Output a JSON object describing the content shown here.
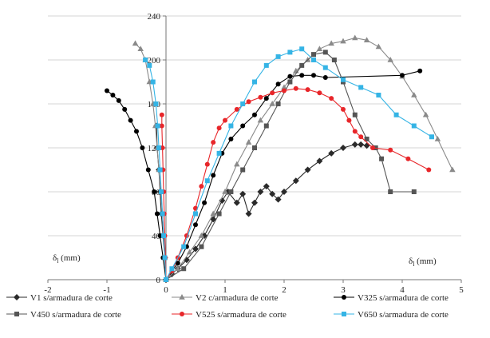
{
  "chart_data": {
    "type": "scatter",
    "xlim": [
      -2,
      5
    ],
    "ylim": [
      0,
      240
    ],
    "x_ticks": [
      "-2",
      "-1",
      "0",
      "1",
      "2",
      "3",
      "4",
      "5"
    ],
    "y_ticks": [
      "0",
      "40",
      "80",
      "120",
      "160",
      "200",
      "240"
    ],
    "x_tick_values": [
      -2,
      -1,
      0,
      1,
      2,
      3,
      4,
      5
    ],
    "y_tick_values": [
      0,
      40,
      80,
      120,
      160,
      200,
      240
    ],
    "grid": "horizontal",
    "left_annotation": "δ",
    "left_annotation_sub": "l",
    "left_annotation_unit": " (mm)",
    "right_annotation": "δ",
    "right_annotation_sub": "l",
    "right_annotation_unit": " (mm)",
    "legend_position": "bottom",
    "series": [
      {
        "name": "V1 s/armadura de corte",
        "color": "#2a2a2a",
        "marker": "diamond",
        "left": [
          [
            0,
            0
          ],
          [
            -0.02,
            20
          ],
          [
            -0.05,
            40
          ],
          [
            -0.08,
            60
          ],
          [
            -0.1,
            80
          ],
          [
            -0.12,
            100
          ],
          [
            -0.15,
            120
          ],
          [
            -0.16,
            140
          ]
        ],
        "right": [
          [
            0,
            0
          ],
          [
            0.1,
            5
          ],
          [
            0.2,
            10
          ],
          [
            0.35,
            18
          ],
          [
            0.5,
            28
          ],
          [
            0.65,
            40
          ],
          [
            0.8,
            55
          ],
          [
            0.95,
            72
          ],
          [
            1.05,
            80
          ],
          [
            1.2,
            70
          ],
          [
            1.3,
            78
          ],
          [
            1.4,
            60
          ],
          [
            1.5,
            70
          ],
          [
            1.6,
            80
          ],
          [
            1.7,
            85
          ],
          [
            1.8,
            78
          ],
          [
            1.9,
            73
          ],
          [
            2.0,
            80
          ],
          [
            2.2,
            90
          ],
          [
            2.4,
            100
          ],
          [
            2.6,
            108
          ],
          [
            2.8,
            115
          ],
          [
            3.0,
            120
          ],
          [
            3.2,
            123
          ],
          [
            3.3,
            123
          ],
          [
            3.4,
            122
          ]
        ]
      },
      {
        "name": "V2 c/armadura de corte",
        "color": "#8a8a8a",
        "marker": "triangle",
        "left": [
          [
            0,
            0
          ],
          [
            -0.02,
            20
          ],
          [
            -0.04,
            40
          ],
          [
            -0.06,
            60
          ],
          [
            -0.09,
            80
          ],
          [
            -0.12,
            100
          ],
          [
            -0.15,
            120
          ],
          [
            -0.18,
            140
          ],
          [
            -0.22,
            160
          ],
          [
            -0.28,
            180
          ],
          [
            -0.35,
            200
          ],
          [
            -0.43,
            210
          ],
          [
            -0.52,
            215
          ]
        ],
        "right": [
          [
            0,
            0
          ],
          [
            0.2,
            10
          ],
          [
            0.4,
            25
          ],
          [
            0.6,
            40
          ],
          [
            0.8,
            60
          ],
          [
            1.0,
            80
          ],
          [
            1.2,
            105
          ],
          [
            1.4,
            125
          ],
          [
            1.6,
            145
          ],
          [
            1.8,
            160
          ],
          [
            2.0,
            175
          ],
          [
            2.2,
            190
          ],
          [
            2.4,
            200
          ],
          [
            2.6,
            210
          ],
          [
            2.8,
            215
          ],
          [
            3.0,
            217
          ],
          [
            3.2,
            220
          ],
          [
            3.4,
            218
          ],
          [
            3.6,
            212
          ],
          [
            3.8,
            200
          ],
          [
            4.0,
            185
          ],
          [
            4.2,
            168
          ],
          [
            4.4,
            150
          ],
          [
            4.6,
            128
          ],
          [
            4.85,
            100
          ]
        ]
      },
      {
        "name": "V325 s/armadura de corte",
        "color": "#000000",
        "marker": "circle",
        "left": [
          [
            0,
            0
          ],
          [
            -0.05,
            20
          ],
          [
            -0.1,
            40
          ],
          [
            -0.15,
            60
          ],
          [
            -0.2,
            80
          ],
          [
            -0.3,
            100
          ],
          [
            -0.4,
            120
          ],
          [
            -0.5,
            135
          ],
          [
            -0.6,
            145
          ],
          [
            -0.7,
            155
          ],
          [
            -0.8,
            163
          ],
          [
            -0.9,
            168
          ],
          [
            -1.0,
            172
          ]
        ],
        "right": [
          [
            0,
            0
          ],
          [
            0.1,
            8
          ],
          [
            0.2,
            15
          ],
          [
            0.35,
            30
          ],
          [
            0.5,
            50
          ],
          [
            0.65,
            70
          ],
          [
            0.8,
            95
          ],
          [
            0.95,
            115
          ],
          [
            1.1,
            128
          ],
          [
            1.3,
            140
          ],
          [
            1.5,
            150
          ],
          [
            1.7,
            165
          ],
          [
            1.9,
            178
          ],
          [
            2.1,
            185
          ],
          [
            2.3,
            186
          ],
          [
            2.5,
            186
          ],
          [
            2.7,
            184
          ],
          [
            4.0,
            186
          ],
          [
            4.3,
            190
          ]
        ]
      },
      {
        "name": "V450 s/armadura de corte",
        "color": "#555555",
        "marker": "square",
        "left": [],
        "right": [
          [
            0,
            0
          ],
          [
            0.3,
            10
          ],
          [
            0.6,
            30
          ],
          [
            0.9,
            60
          ],
          [
            1.1,
            80
          ],
          [
            1.3,
            100
          ],
          [
            1.5,
            120
          ],
          [
            1.7,
            140
          ],
          [
            1.9,
            160
          ],
          [
            2.1,
            180
          ],
          [
            2.3,
            195
          ],
          [
            2.5,
            205
          ],
          [
            2.7,
            207
          ],
          [
            2.85,
            200
          ],
          [
            3.0,
            180
          ],
          [
            3.2,
            150
          ],
          [
            3.4,
            128
          ],
          [
            3.55,
            120
          ],
          [
            3.65,
            110
          ],
          [
            3.8,
            80
          ],
          [
            4.2,
            80
          ]
        ]
      },
      {
        "name": "V525 s/armadura de corte",
        "color": "#e8262a",
        "marker": "circle",
        "left": [
          [
            0,
            0
          ],
          [
            -0.01,
            20
          ],
          [
            -0.02,
            40
          ],
          [
            -0.03,
            60
          ],
          [
            -0.04,
            80
          ],
          [
            -0.05,
            100
          ],
          [
            -0.06,
            120
          ],
          [
            -0.07,
            140
          ],
          [
            -0.07,
            150
          ]
        ],
        "right": [
          [
            0,
            0
          ],
          [
            0.1,
            8
          ],
          [
            0.2,
            20
          ],
          [
            0.35,
            40
          ],
          [
            0.5,
            65
          ],
          [
            0.6,
            85
          ],
          [
            0.7,
            105
          ],
          [
            0.8,
            125
          ],
          [
            0.9,
            138
          ],
          [
            1.0,
            145
          ],
          [
            1.2,
            155
          ],
          [
            1.4,
            162
          ],
          [
            1.6,
            166
          ],
          [
            1.8,
            170
          ],
          [
            2.0,
            172
          ],
          [
            2.2,
            174
          ],
          [
            2.4,
            173
          ],
          [
            2.6,
            170
          ],
          [
            2.8,
            165
          ],
          [
            3.0,
            155
          ],
          [
            3.1,
            145
          ],
          [
            3.2,
            135
          ],
          [
            3.3,
            130
          ],
          [
            3.5,
            120
          ],
          [
            3.8,
            118
          ],
          [
            4.1,
            110
          ],
          [
            4.45,
            100
          ]
        ]
      },
      {
        "name": "V650 s/armadura de corte",
        "color": "#35b4e5",
        "marker": "square",
        "left": [
          [
            0,
            0
          ],
          [
            -0.02,
            20
          ],
          [
            -0.04,
            40
          ],
          [
            -0.06,
            60
          ],
          [
            -0.08,
            80
          ],
          [
            -0.1,
            100
          ],
          [
            -0.12,
            120
          ],
          [
            -0.14,
            140
          ],
          [
            -0.17,
            160
          ],
          [
            -0.22,
            180
          ],
          [
            -0.28,
            195
          ],
          [
            -0.35,
            200
          ]
        ],
        "right": [
          [
            0,
            0
          ],
          [
            0.1,
            10
          ],
          [
            0.3,
            30
          ],
          [
            0.5,
            60
          ],
          [
            0.7,
            90
          ],
          [
            0.9,
            115
          ],
          [
            1.1,
            140
          ],
          [
            1.3,
            160
          ],
          [
            1.5,
            180
          ],
          [
            1.7,
            195
          ],
          [
            1.9,
            203
          ],
          [
            2.1,
            207
          ],
          [
            2.3,
            210
          ],
          [
            2.5,
            200
          ],
          [
            2.7,
            193
          ],
          [
            3.0,
            182
          ],
          [
            3.3,
            175
          ],
          [
            3.6,
            168
          ],
          [
            3.9,
            150
          ],
          [
            4.2,
            140
          ],
          [
            4.5,
            130
          ]
        ]
      }
    ]
  }
}
